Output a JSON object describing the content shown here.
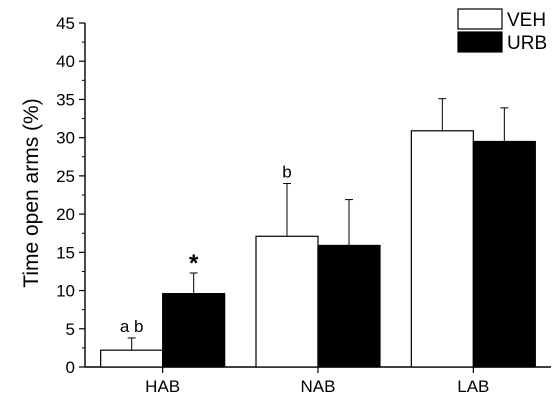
{
  "chart_data": {
    "type": "bar",
    "categories": [
      "HAB",
      "NAB",
      "LAB"
    ],
    "series": [
      {
        "name": "VEH",
        "values": [
          2.2,
          17.1,
          30.9
        ],
        "errors": [
          1.6,
          6.9,
          4.2
        ],
        "color": "#ffffff"
      },
      {
        "name": "URB",
        "values": [
          9.6,
          15.9,
          29.5
        ],
        "errors": [
          2.7,
          6.0,
          4.4
        ],
        "color": "#000000"
      }
    ],
    "xlabel": "",
    "ylabel": "Time open arms (%)",
    "ylim": [
      0,
      45
    ],
    "yticks": [
      0,
      5,
      10,
      15,
      20,
      25,
      30,
      35,
      40,
      45
    ],
    "legend_position": "top-right",
    "annotations": [
      {
        "category": "HAB",
        "series": "VEH",
        "text": "a b"
      },
      {
        "category": "HAB",
        "series": "URB",
        "text": "*"
      },
      {
        "category": "NAB",
        "series": "VEH",
        "text": "b"
      }
    ]
  }
}
